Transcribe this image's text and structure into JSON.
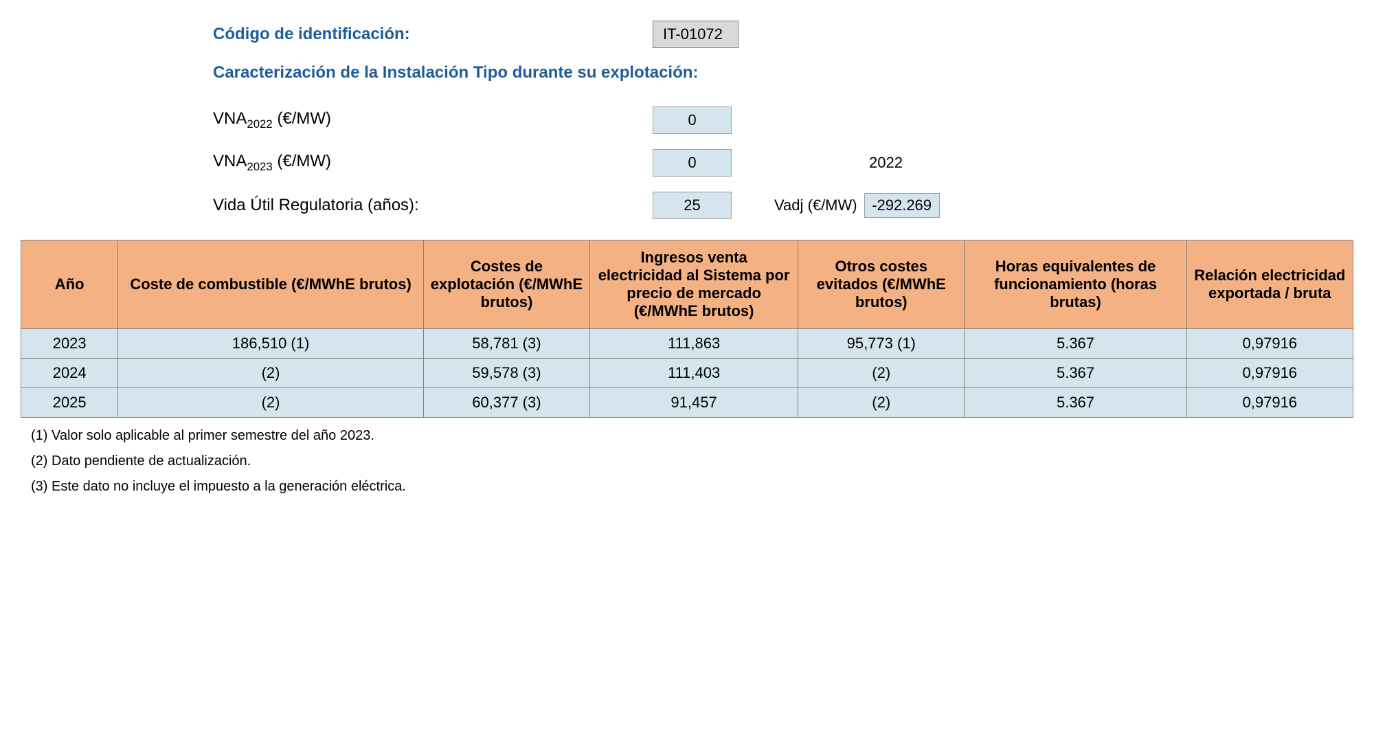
{
  "labels": {
    "code_id": "Código de identificación:",
    "characterization": "Caracterización de la Instalación Tipo durante su explotación:",
    "vna_2022_prefix": "VNA",
    "vna_2022_sub": "2022",
    "vna_2022_suffix": " (€/MW)",
    "vna_2023_prefix": "VNA",
    "vna_2023_sub": "2023",
    "vna_2023_suffix": " (€/MW)",
    "regulatory_life": "Vida Útil Regulatoria (años):",
    "vadj": "Vadj (€/MW)"
  },
  "values": {
    "code_id": "IT-01072",
    "vna_2022": "0",
    "vna_2023": "0",
    "regulatory_life": "25",
    "ref_year": "2022",
    "vadj": "-292.269"
  },
  "table": {
    "headers": {
      "year": "Año",
      "fuel_cost": "Coste de combustible (€/MWhE brutos)",
      "exploit_cost": "Costes de explotación (€/MWhE brutos)",
      "income": "Ingresos venta electricidad al Sistema por precio de mercado (€/MWhE brutos)",
      "other_costs": "Otros costes evitados (€/MWhE brutos)",
      "hours": "Horas equivalentes de funcionamiento (horas brutas)",
      "ratio": "Relación electricidad exportada / bruta"
    },
    "rows": [
      {
        "year": "2023",
        "fuel_cost": "186,510 (1)",
        "exploit_cost": "58,781 (3)",
        "income": "111,863",
        "other_costs": "95,773 (1)",
        "hours": "5.367",
        "ratio": "0,97916"
      },
      {
        "year": "2024",
        "fuel_cost": "(2)",
        "exploit_cost": "59,578 (3)",
        "income": "111,403",
        "other_costs": "(2)",
        "hours": "5.367",
        "ratio": "0,97916"
      },
      {
        "year": "2025",
        "fuel_cost": "(2)",
        "exploit_cost": "60,377 (3)",
        "income": "91,457",
        "other_costs": "(2)",
        "hours": "5.367",
        "ratio": "0,97916"
      }
    ]
  },
  "footnotes": [
    "(1) Valor solo aplicable al primer semestre del año 2023.",
    "(2) Dato pendiente de actualización.",
    "(3) Este dato no incluye el impuesto a la generación eléctrica."
  ],
  "styling": {
    "header_bg": "#f4b183",
    "cell_bg": "#d5e5ed",
    "code_bg": "#d9d9d9",
    "border_color": "#808080",
    "blue_text": "#1f5c99",
    "body_bg": "#ffffff"
  }
}
